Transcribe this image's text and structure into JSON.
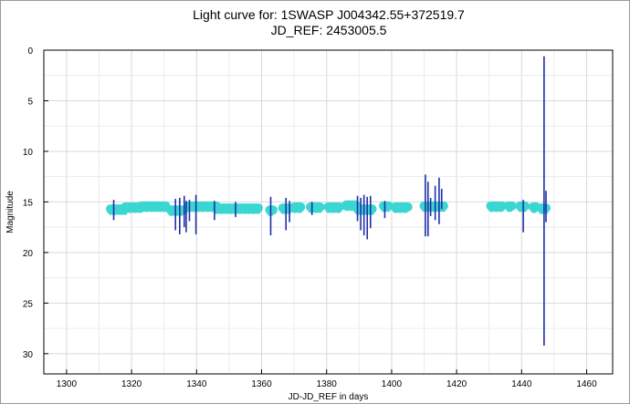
{
  "chart_data": {
    "type": "scatter",
    "title": "Light curve for: 1SWASP J004342.55+372519.7",
    "subtitle": "JD_REF: 2453005.5",
    "xlabel": "JD-JD_REF in days",
    "ylabel": "Magnitude",
    "xlim": [
      1293,
      1468
    ],
    "ylim": [
      0,
      32
    ],
    "y_inverted": true,
    "x_ticks": [
      1300,
      1320,
      1340,
      1360,
      1380,
      1400,
      1420,
      1440,
      1460
    ],
    "y_ticks": [
      0,
      5,
      10,
      15,
      20,
      25,
      30
    ],
    "grid": true,
    "series": [
      {
        "color": "#3ad6d2",
        "marker": "dense-points",
        "segments": [
          {
            "x": [
              1313.5,
              1318
            ],
            "y": 15.7
          },
          {
            "x": [
              1318,
              1323
            ],
            "y": 15.5
          },
          {
            "x": [
              1323,
              1330.5
            ],
            "y": 15.4
          },
          {
            "x": [
              1332,
              1336
            ],
            "y": 15.8
          },
          {
            "x": [
              1337.5,
              1346
            ],
            "y": 15.4
          },
          {
            "x": [
              1346,
              1359
            ],
            "y": 15.6
          },
          {
            "x": [
              1362.5,
              1363.5
            ],
            "y": 15.8
          },
          {
            "x": [
              1366.5,
              1369
            ],
            "y": 15.6
          },
          {
            "x": [
              1370,
              1372
            ],
            "y": 15.5
          },
          {
            "x": [
              1375,
              1378
            ],
            "y": 15.5
          },
          {
            "x": [
              1380.5,
              1384
            ],
            "y": 15.5
          },
          {
            "x": [
              1386,
              1389
            ],
            "y": 15.3
          },
          {
            "x": [
              1389.5,
              1394
            ],
            "y": 15.7
          },
          {
            "x": [
              1397.5,
              1399
            ],
            "y": 15.4
          },
          {
            "x": [
              1401,
              1405
            ],
            "y": 15.5
          },
          {
            "x": [
              1410,
              1416
            ],
            "y": 15.4
          },
          {
            "x": [
              1430.5,
              1434
            ],
            "y": 15.4
          },
          {
            "x": [
              1436,
              1437
            ],
            "y": 15.4
          },
          {
            "x": [
              1439.5,
              1441
            ],
            "y": 15.4
          },
          {
            "x": [
              1443.5,
              1444.5
            ],
            "y": 15.5
          },
          {
            "x": [
              1446,
              1447.5
            ],
            "y": 15.6
          }
        ]
      },
      {
        "color": "#1f2fa8",
        "marker": "error-bars",
        "errorbars": [
          {
            "x": 1314.5,
            "low": 14.8,
            "high": 16.8
          },
          {
            "x": 1333.5,
            "low": 14.7,
            "high": 17.8
          },
          {
            "x": 1334.8,
            "low": 14.6,
            "high": 18.2
          },
          {
            "x": 1336.2,
            "low": 14.4,
            "high": 17.5
          },
          {
            "x": 1336.8,
            "low": 14.9,
            "high": 18.0
          },
          {
            "x": 1337.8,
            "low": 14.8,
            "high": 16.9
          },
          {
            "x": 1339.8,
            "low": 14.3,
            "high": 18.2
          },
          {
            "x": 1345.5,
            "low": 14.9,
            "high": 16.8
          },
          {
            "x": 1352.0,
            "low": 15.0,
            "high": 16.5
          },
          {
            "x": 1362.8,
            "low": 14.5,
            "high": 18.3
          },
          {
            "x": 1367.5,
            "low": 14.6,
            "high": 17.8
          },
          {
            "x": 1368.6,
            "low": 14.9,
            "high": 17.0
          },
          {
            "x": 1375.5,
            "low": 15.0,
            "high": 16.3
          },
          {
            "x": 1389.5,
            "low": 14.4,
            "high": 16.9
          },
          {
            "x": 1390.5,
            "low": 14.6,
            "high": 17.8
          },
          {
            "x": 1391.5,
            "low": 14.3,
            "high": 18.3
          },
          {
            "x": 1392.5,
            "low": 14.5,
            "high": 18.7
          },
          {
            "x": 1393.5,
            "low": 14.4,
            "high": 17.6
          },
          {
            "x": 1397.9,
            "low": 14.9,
            "high": 16.6
          },
          {
            "x": 1410.4,
            "low": 12.3,
            "high": 18.4
          },
          {
            "x": 1411.2,
            "low": 13.0,
            "high": 18.4
          },
          {
            "x": 1412.0,
            "low": 14.6,
            "high": 16.4
          },
          {
            "x": 1413.4,
            "low": 13.4,
            "high": 16.8
          },
          {
            "x": 1414.6,
            "low": 12.6,
            "high": 17.2
          },
          {
            "x": 1415.4,
            "low": 13.7,
            "high": 15.7
          },
          {
            "x": 1440.5,
            "low": 14.8,
            "high": 18.0
          },
          {
            "x": 1446.9,
            "low": 0.6,
            "high": 29.2
          },
          {
            "x": 1447.5,
            "low": 13.9,
            "high": 17.0
          }
        ]
      }
    ]
  }
}
